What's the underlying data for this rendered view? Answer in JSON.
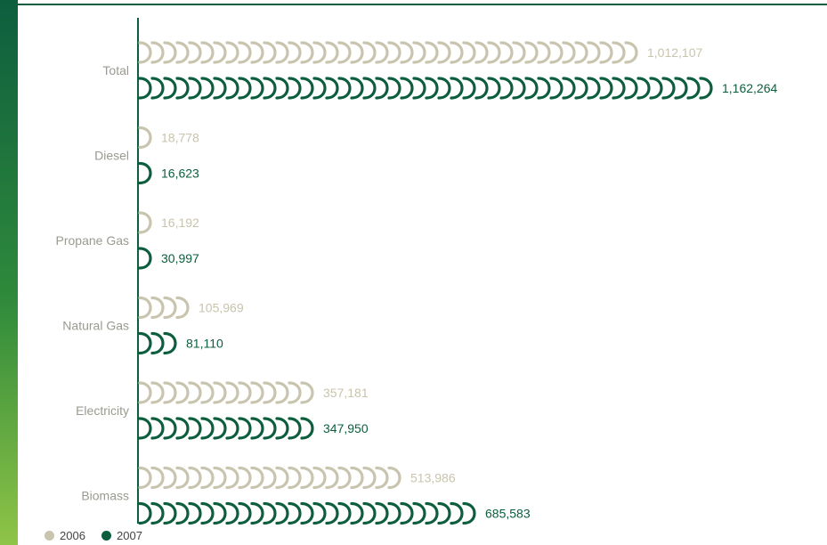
{
  "colors": {
    "s2006": "#c8c4ad",
    "s2007": "#0d5e3e",
    "axis": "#0d5e3e",
    "category_text": "#9a9a90"
  },
  "chart_data": {
    "type": "bar",
    "orientation": "horizontal",
    "categories": [
      "Total",
      "Diesel",
      "Propane Gas",
      "Natural Gas",
      "Electricity",
      "Biomass"
    ],
    "series": [
      {
        "name": "2006",
        "values": [
          1012107,
          18778,
          16192,
          105969,
          357181,
          513986
        ],
        "labels": [
          "1,012,107",
          "18,778",
          "16,192",
          "105,969",
          "357,181",
          "513,986"
        ]
      },
      {
        "name": "2007",
        "values": [
          1162264,
          16623,
          30997,
          81110,
          347950,
          685583
        ],
        "labels": [
          "1,162,264",
          "16,623",
          "30,997",
          "81,110",
          "347,950",
          "685,583"
        ]
      }
    ],
    "xlim": [
      0,
      1200000
    ],
    "grid": false,
    "legend_position": "bottom-left"
  }
}
